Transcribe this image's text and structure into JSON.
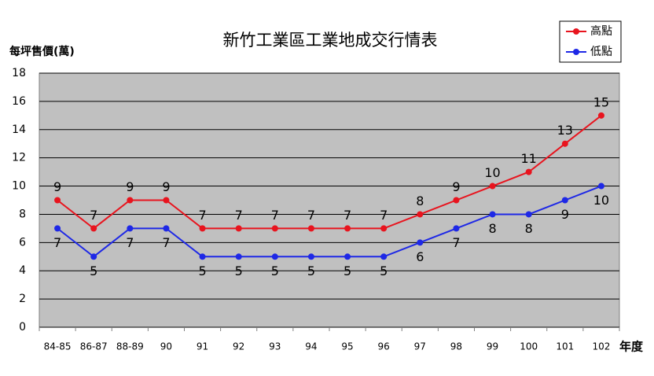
{
  "chart_data": {
    "type": "line",
    "title": "新竹工業區工業地成交行情表",
    "y_label": "每坪售價(萬)",
    "x_label": "年度",
    "categories": [
      "84-85",
      "86-87",
      "88-89",
      "90",
      "91",
      "92",
      "93",
      "94",
      "95",
      "96",
      "97",
      "98",
      "99",
      "100",
      "101",
      "102"
    ],
    "series": [
      {
        "name": "高點",
        "color": "#e8141e",
        "values": [
          9,
          7,
          9,
          9,
          7,
          7,
          7,
          7,
          7,
          7,
          8,
          9,
          10,
          11,
          13,
          15
        ]
      },
      {
        "name": "低點",
        "color": "#1e28e6",
        "values": [
          7,
          5,
          7,
          7,
          5,
          5,
          5,
          5,
          5,
          5,
          6,
          7,
          8,
          8,
          9,
          10
        ]
      }
    ],
    "ylim": [
      0,
      18
    ],
    "yticks": [
      0,
      2,
      4,
      6,
      8,
      10,
      12,
      14,
      16,
      18
    ],
    "grid": true,
    "legend": "top-right",
    "background": "#c0c0c0"
  }
}
